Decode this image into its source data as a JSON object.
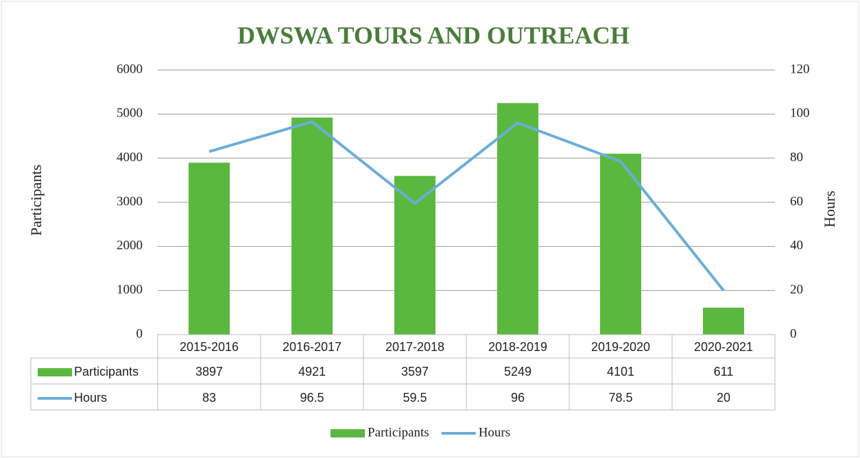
{
  "chart_data": {
    "type": "bar",
    "title": "DWSWA TOURS AND OUTREACH",
    "y_label": "Participants",
    "y2_label": "Hours",
    "categories": [
      "2015-2016",
      "2016-2017",
      "2017-2018",
      "2018-2019",
      "2019-2020",
      "2020-2021"
    ],
    "series": [
      {
        "name": "Participants",
        "type": "bar",
        "color": "#5ab83e",
        "values": [
          3897,
          4921,
          3597,
          5249,
          4101,
          611
        ]
      },
      {
        "name": "Hours",
        "type": "line",
        "color": "#6badd8",
        "axis": "y2",
        "values": [
          83,
          96.5,
          59.5,
          96,
          78.5,
          20
        ]
      }
    ],
    "ylim": [
      0,
      6000
    ],
    "yticks": [
      0,
      1000,
      2000,
      3000,
      4000,
      5000,
      6000
    ],
    "y2lim": [
      0,
      120
    ],
    "y2ticks": [
      0,
      20,
      40,
      60,
      80,
      100,
      120
    ],
    "grid": true,
    "legend": "bottom",
    "data_table": true
  }
}
